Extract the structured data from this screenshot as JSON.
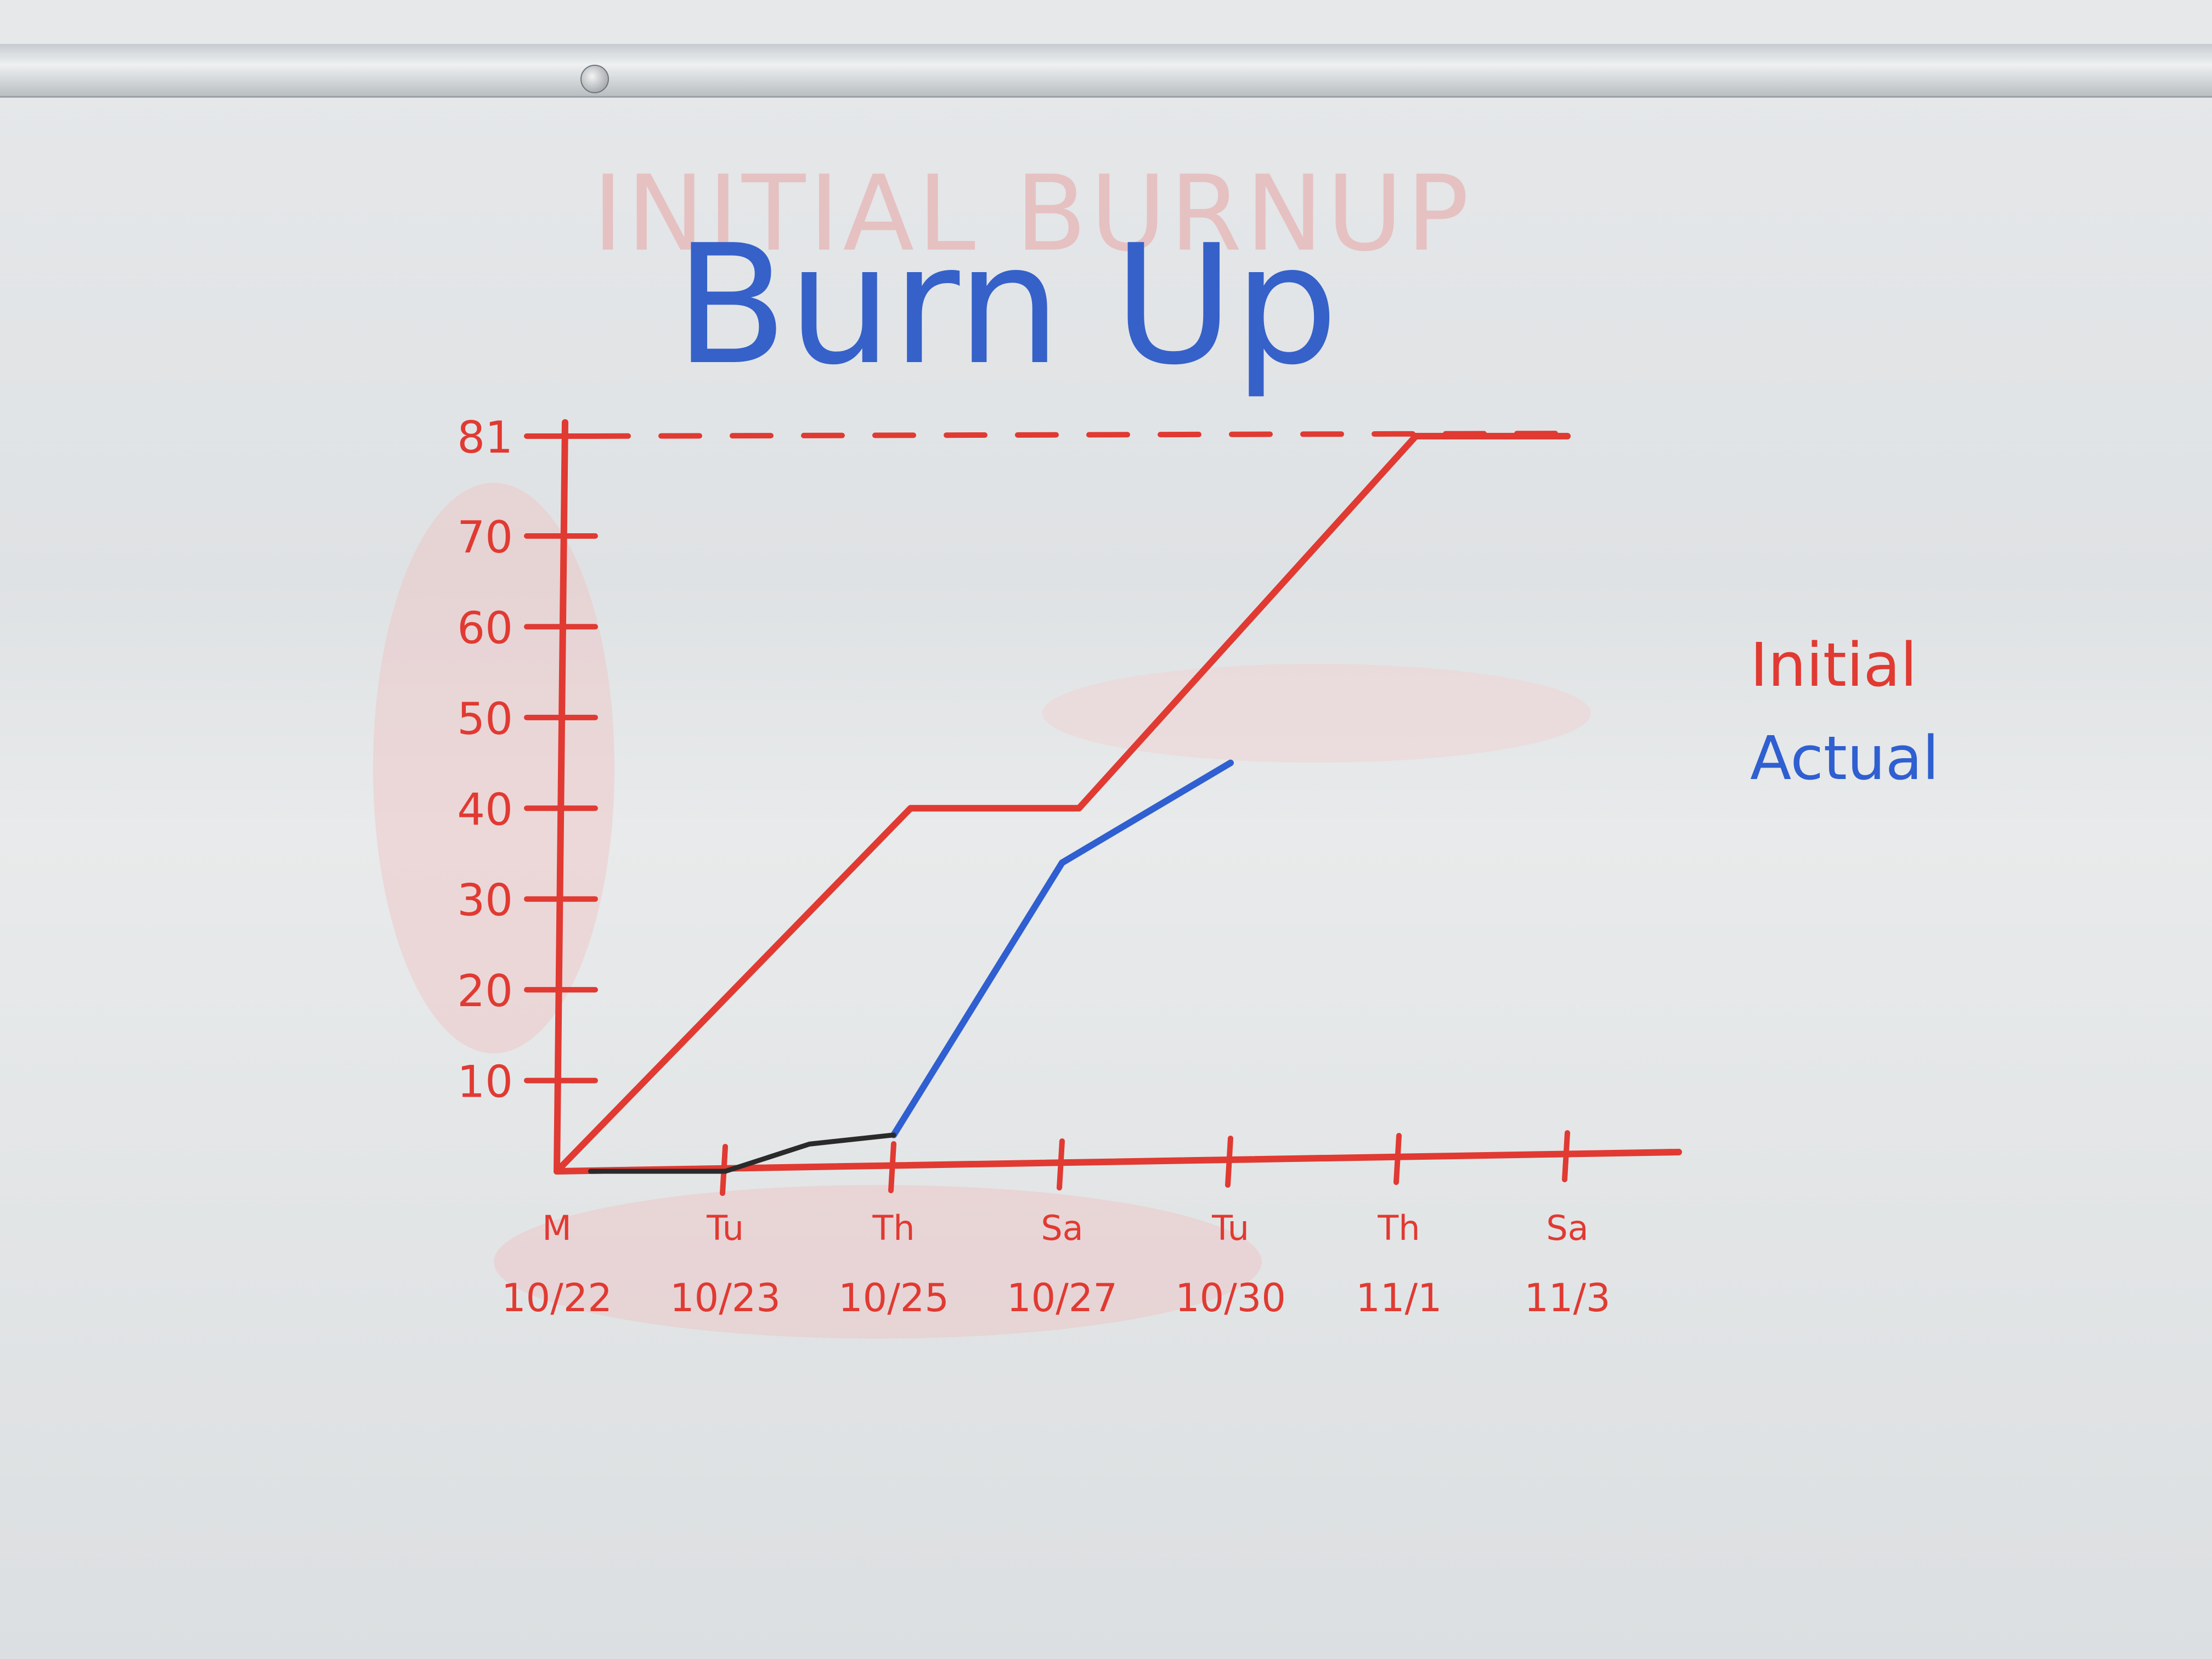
{
  "chart_data": {
    "type": "line",
    "title": "Burn Up",
    "ghost_title": "INITIAL BURNUP",
    "yticks": [
      10,
      20,
      30,
      40,
      50,
      60,
      70,
      81
    ],
    "ytick_labels": [
      "10",
      "20",
      "30",
      "40",
      "50",
      "60",
      "70",
      "81"
    ],
    "ylim": [
      0,
      81
    ],
    "categories": [
      {
        "day": "M",
        "date": "10/22"
      },
      {
        "day": "Tu",
        "date": "10/23"
      },
      {
        "day": "Th",
        "date": "10/25"
      },
      {
        "day": "Sa",
        "date": "10/27"
      },
      {
        "day": "Tu",
        "date": "10/30"
      },
      {
        "day": "Th",
        "date": "11/1"
      },
      {
        "day": "Sa",
        "date": "11/3"
      }
    ],
    "target_line": {
      "value": 81,
      "style": "dashed"
    },
    "series": [
      {
        "name": "Initial",
        "color": "#e03a32",
        "points": [
          [
            0,
            0
          ],
          [
            2.1,
            40
          ],
          [
            3.1,
            40
          ],
          [
            5.1,
            81
          ],
          [
            6,
            81
          ]
        ]
      },
      {
        "name": "Actual",
        "color": "#2f5fd0",
        "points": [
          [
            2,
            4
          ],
          [
            3,
            34
          ],
          [
            4,
            45
          ]
        ]
      },
      {
        "color": "#2a2a2a",
        "points": [
          [
            0.2,
            0
          ],
          [
            1,
            0
          ],
          [
            1.5,
            3
          ],
          [
            2,
            4
          ]
        ]
      }
    ],
    "legend": {
      "placement": "right",
      "entries": [
        "Initial",
        "Actual"
      ]
    }
  }
}
